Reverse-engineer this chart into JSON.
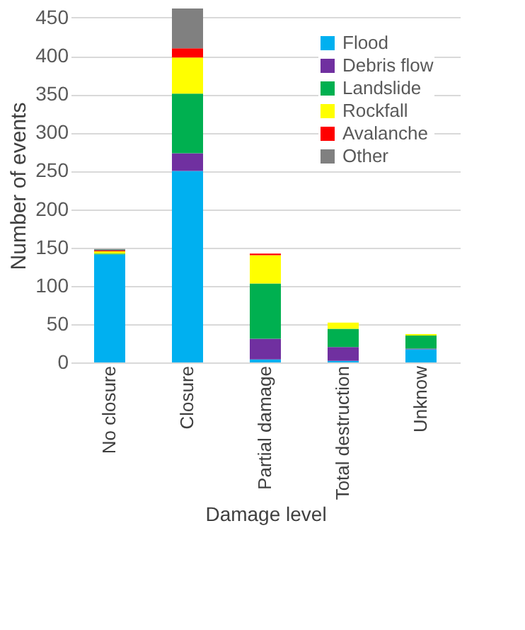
{
  "chart_data": {
    "type": "bar",
    "stacked": true,
    "xlabel": "Damage level",
    "ylabel": "Number of events",
    "categories": [
      "No closure",
      "Closure",
      "Partial damage",
      "Total destruction",
      "Unknow"
    ],
    "series": [
      {
        "name": "Flood",
        "color": "#00b0f0",
        "values": [
          141,
          250,
          4,
          2,
          17
        ]
      },
      {
        "name": "Debris flow",
        "color": "#7030a0",
        "values": [
          0,
          23,
          27,
          18,
          1
        ]
      },
      {
        "name": "Landslide",
        "color": "#00b050",
        "values": [
          1,
          78,
          72,
          24,
          17
        ]
      },
      {
        "name": "Rockfall",
        "color": "#ffff00",
        "values": [
          3,
          47,
          37,
          8,
          2
        ]
      },
      {
        "name": "Avalanche",
        "color": "#ff0000",
        "values": [
          1,
          12,
          2,
          0,
          0
        ]
      },
      {
        "name": "Other",
        "color": "#808080",
        "values": [
          2,
          52,
          0,
          0,
          0
        ]
      }
    ],
    "ylim": [
      0,
      462
    ],
    "yticks": [
      0,
      50,
      100,
      150,
      200,
      250,
      300,
      350,
      400,
      450
    ],
    "grid": "y",
    "legend": "top right"
  }
}
